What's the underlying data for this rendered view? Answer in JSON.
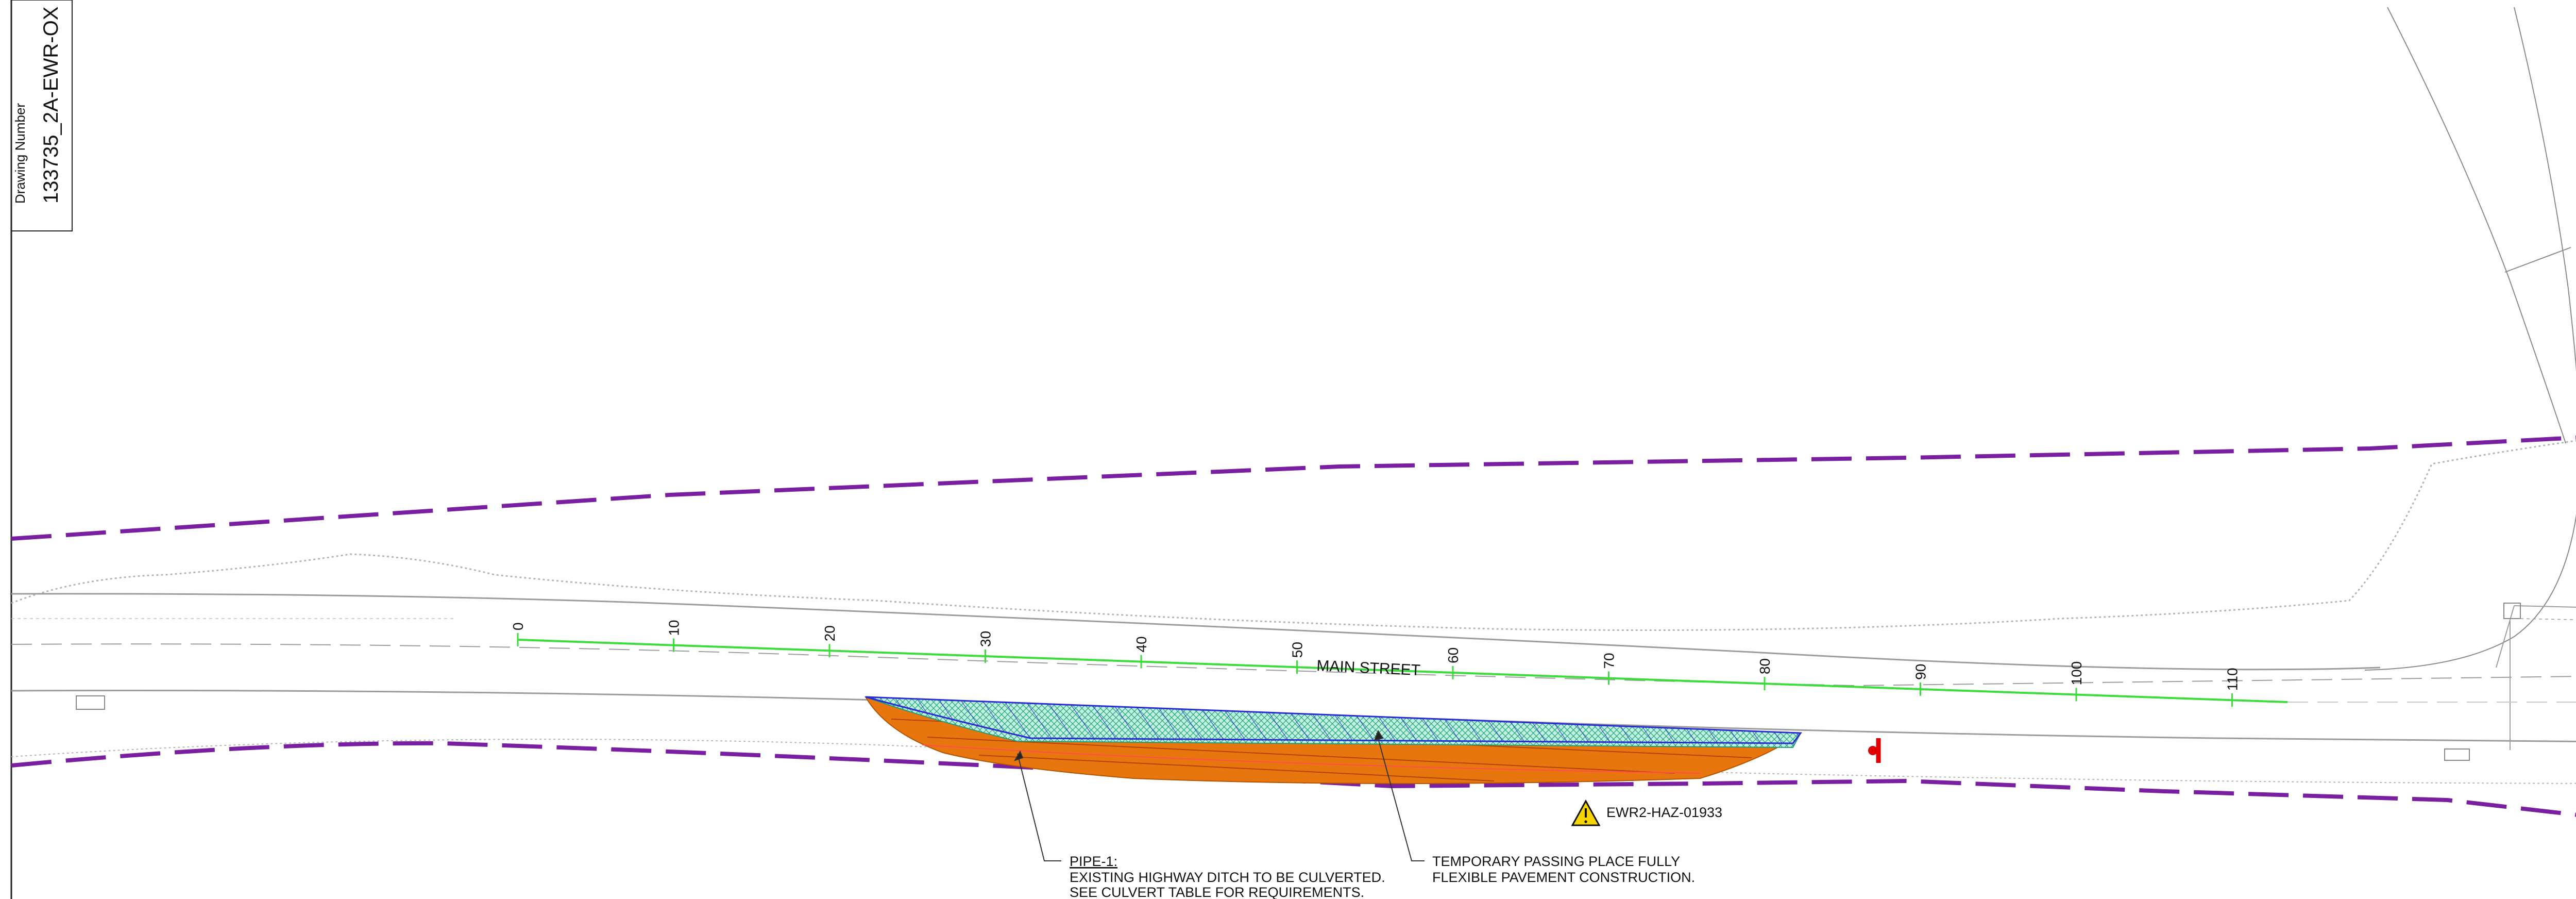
{
  "title_block": {
    "drawing_number_label": "Drawing Number",
    "drawing_number": "133735_2A-EWR-OX"
  },
  "road": {
    "name": "MAIN STREET"
  },
  "chainage": {
    "labels": [
      "0",
      "10",
      "20",
      "30",
      "40",
      "50",
      "60",
      "70",
      "80",
      "90",
      "100",
      "110"
    ]
  },
  "hazard": {
    "icon": "warning-triangle-icon",
    "reference": "EWR2-HAZ-01933"
  },
  "notes": {
    "pipe": {
      "title": "PIPE-1:",
      "line1": "EXISTING HIGHWAY DITCH TO BE CULVERTED.",
      "line2": "SEE CULVERT TABLE FOR REQUIREMENTS."
    },
    "passing_place": {
      "line1": "TEMPORARY PASSING PLACE FULLY",
      "line2": "FLEXIBLE PAVEMENT CONSTRUCTION."
    }
  },
  "colors": {
    "boundary": "#7a1fa2",
    "chainage_line": "#3ddc3d",
    "hatch": "#2b2bd6",
    "verge": "#2fc7a0",
    "earthworks": "#e8760e",
    "marker": "#e00000"
  }
}
